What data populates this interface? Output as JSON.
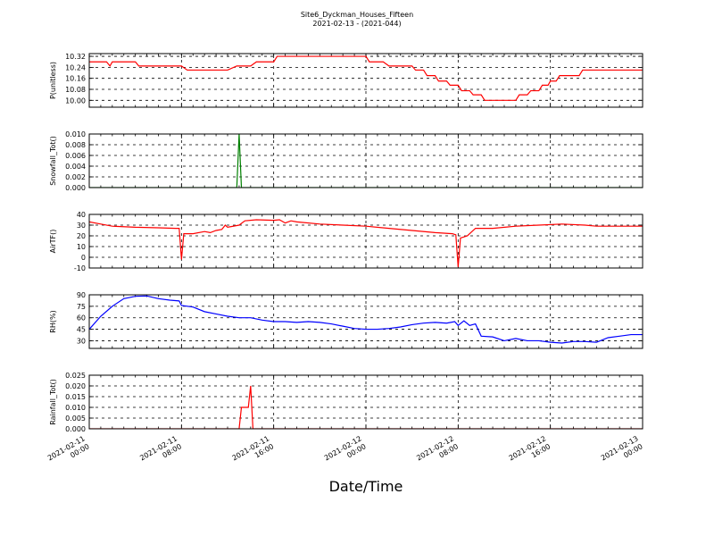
{
  "title": "Site6_Dyckman_Houses_Fifteen",
  "subtitle": "2021-02-13 - (2021-044)",
  "chart_data": {
    "type": "line",
    "xlabel": "Date/Time",
    "xlim": [
      "2021-02-11 00:00",
      "2021-02-13 00:00"
    ],
    "x_ticks": [
      {
        "l1": "2021-02-11",
        "l2": "00:00",
        "hour": 0
      },
      {
        "l1": "2021-02-11",
        "l2": "08:00",
        "hour": 8
      },
      {
        "l1": "2021-02-11",
        "l2": "16:00",
        "hour": 16
      },
      {
        "l1": "2021-02-12",
        "l2": "00:00",
        "hour": 24
      },
      {
        "l1": "2021-02-12",
        "l2": "08:00",
        "hour": 32
      },
      {
        "l1": "2021-02-12",
        "l2": "16:00",
        "hour": 40
      },
      {
        "l1": "2021-02-13",
        "l2": "00:00",
        "hour": 48
      }
    ],
    "grid": true,
    "panels": [
      {
        "ylabel": "P(unitless)",
        "color": "#ff0000",
        "ylim": [
          9.95,
          10.34
        ],
        "yticks": [
          "10.00",
          "10.08",
          "10.16",
          "10.24",
          "10.32"
        ],
        "points": [
          [
            0,
            10.28
          ],
          [
            1.5,
            10.28
          ],
          [
            1.8,
            10.25
          ],
          [
            2,
            10.28
          ],
          [
            4,
            10.28
          ],
          [
            4.3,
            10.25
          ],
          [
            8,
            10.25
          ],
          [
            8.5,
            10.22
          ],
          [
            12,
            10.22
          ],
          [
            12.8,
            10.25
          ],
          [
            14,
            10.25
          ],
          [
            14.5,
            10.28
          ],
          [
            16,
            10.28
          ],
          [
            16.3,
            10.32
          ],
          [
            24,
            10.32
          ],
          [
            24.3,
            10.28
          ],
          [
            25.5,
            10.28
          ],
          [
            26,
            10.25
          ],
          [
            28,
            10.25
          ],
          [
            28.3,
            10.22
          ],
          [
            29,
            10.22
          ],
          [
            29.3,
            10.18
          ],
          [
            30,
            10.18
          ],
          [
            30.3,
            10.14
          ],
          [
            31,
            10.14
          ],
          [
            31.3,
            10.11
          ],
          [
            32,
            10.11
          ],
          [
            32.3,
            10.07
          ],
          [
            33,
            10.07
          ],
          [
            33.3,
            10.04
          ],
          [
            34,
            10.04
          ],
          [
            34.3,
            10.0
          ],
          [
            37,
            10.0
          ],
          [
            37.3,
            10.04
          ],
          [
            38,
            10.04
          ],
          [
            38.3,
            10.07
          ],
          [
            39,
            10.07
          ],
          [
            39.3,
            10.11
          ],
          [
            39.8,
            10.11
          ],
          [
            40,
            10.14
          ],
          [
            40.5,
            10.14
          ],
          [
            40.8,
            10.18
          ],
          [
            42.5,
            10.18
          ],
          [
            42.8,
            10.22
          ],
          [
            48,
            10.22
          ]
        ]
      },
      {
        "ylabel": "Snowfall_Tot()",
        "color": "#008000",
        "ylim": [
          0,
          0.01
        ],
        "yticks": [
          "0.000",
          "0.002",
          "0.004",
          "0.006",
          "0.008",
          "0.010"
        ],
        "points": [
          [
            0,
            0
          ],
          [
            12.8,
            0
          ],
          [
            13,
            0.01
          ],
          [
            13.2,
            0
          ],
          [
            48,
            0
          ]
        ]
      },
      {
        "ylabel": "AirTF()",
        "color": "#ff0000",
        "ylim": [
          -10,
          40
        ],
        "yticks": [
          "-10",
          "0",
          "10",
          "20",
          "30",
          "40"
        ],
        "points": [
          [
            0,
            33
          ],
          [
            1,
            31
          ],
          [
            2,
            29
          ],
          [
            4,
            28
          ],
          [
            6,
            27.5
          ],
          [
            7.5,
            27
          ],
          [
            7.8,
            27
          ],
          [
            8,
            -2
          ],
          [
            8.2,
            22
          ],
          [
            9,
            22
          ],
          [
            10,
            24
          ],
          [
            10.5,
            23
          ],
          [
            11,
            25
          ],
          [
            11.5,
            26
          ],
          [
            11.8,
            30
          ],
          [
            12,
            28
          ],
          [
            13,
            30
          ],
          [
            13.5,
            34
          ],
          [
            14.5,
            35
          ],
          [
            16,
            34.5
          ],
          [
            16.5,
            35
          ],
          [
            17,
            32
          ],
          [
            17.5,
            34
          ],
          [
            18,
            33
          ],
          [
            20,
            31
          ],
          [
            22,
            30
          ],
          [
            24,
            29
          ],
          [
            26,
            27
          ],
          [
            28,
            25
          ],
          [
            30,
            23
          ],
          [
            31.5,
            22
          ],
          [
            31.8,
            21
          ],
          [
            32,
            -9
          ],
          [
            32.2,
            18
          ],
          [
            32.8,
            20
          ],
          [
            33.5,
            27
          ],
          [
            35,
            27
          ],
          [
            37,
            29
          ],
          [
            39,
            30
          ],
          [
            41,
            31
          ],
          [
            43,
            30
          ],
          [
            44,
            29
          ],
          [
            46,
            29
          ],
          [
            48,
            29
          ]
        ]
      },
      {
        "ylabel": "RH(%)",
        "color": "#0000ff",
        "ylim": [
          20,
          90
        ],
        "yticks": [
          "30",
          "45",
          "60",
          "75",
          "90"
        ],
        "points": [
          [
            0,
            45
          ],
          [
            1,
            62
          ],
          [
            2,
            75
          ],
          [
            3,
            85
          ],
          [
            4,
            88
          ],
          [
            5,
            88.5
          ],
          [
            6,
            85
          ],
          [
            7,
            83
          ],
          [
            7.8,
            82
          ],
          [
            8,
            76
          ],
          [
            9,
            74
          ],
          [
            10,
            68
          ],
          [
            11,
            65
          ],
          [
            12,
            62
          ],
          [
            13,
            60
          ],
          [
            14,
            60
          ],
          [
            15,
            57
          ],
          [
            16,
            55
          ],
          [
            17,
            55
          ],
          [
            18,
            54
          ],
          [
            19,
            55
          ],
          [
            20,
            54
          ],
          [
            21,
            52
          ],
          [
            22,
            49
          ],
          [
            23,
            46
          ],
          [
            24,
            45
          ],
          [
            25,
            45
          ],
          [
            26,
            46
          ],
          [
            27,
            48
          ],
          [
            28,
            51
          ],
          [
            29,
            53
          ],
          [
            30,
            54
          ],
          [
            31,
            53
          ],
          [
            31.7,
            55
          ],
          [
            32,
            50
          ],
          [
            32.5,
            56
          ],
          [
            33,
            50
          ],
          [
            33.5,
            52
          ],
          [
            34,
            36
          ],
          [
            35,
            35
          ],
          [
            36,
            30
          ],
          [
            37,
            33
          ],
          [
            38,
            30
          ],
          [
            39,
            30
          ],
          [
            40,
            28
          ],
          [
            41,
            27
          ],
          [
            42,
            29
          ],
          [
            43,
            29
          ],
          [
            44,
            28
          ],
          [
            45,
            34
          ],
          [
            46,
            36
          ],
          [
            47,
            38
          ],
          [
            48,
            38
          ]
        ]
      },
      {
        "ylabel": "Rainfall_Tot()",
        "color": "#ff0000",
        "ylim": [
          0,
          0.025
        ],
        "yticks": [
          "0.000",
          "0.005",
          "0.010",
          "0.015",
          "0.020",
          "0.025"
        ],
        "points": [
          [
            0,
            0
          ],
          [
            13,
            0
          ],
          [
            13.2,
            0.01
          ],
          [
            13.8,
            0.01
          ],
          [
            14,
            0.02
          ],
          [
            14.2,
            0
          ],
          [
            48,
            0
          ]
        ]
      }
    ]
  }
}
